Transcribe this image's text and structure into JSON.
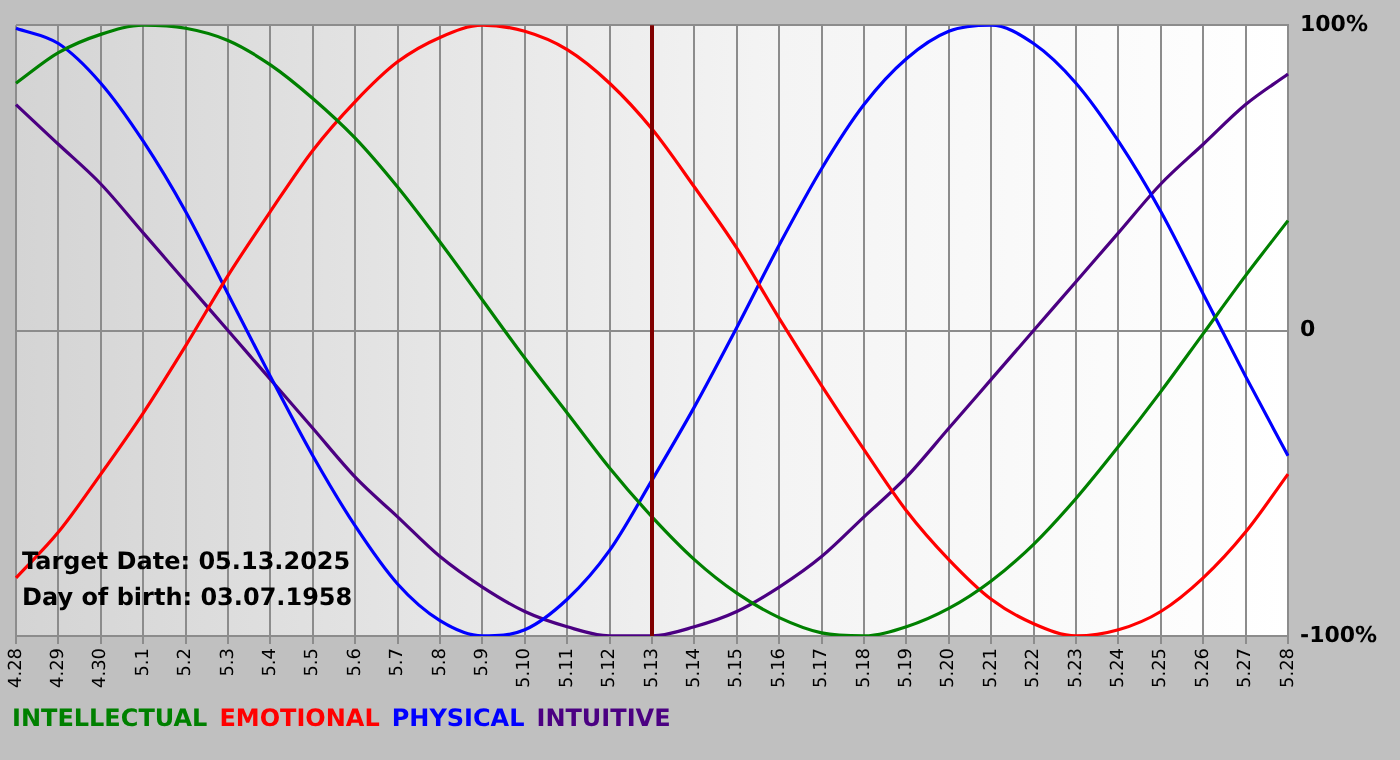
{
  "chart_data": {
    "type": "line",
    "categories": [
      "4.28",
      "4.29",
      "4.30",
      "5.1",
      "5.2",
      "5.3",
      "5.4",
      "5.5",
      "5.6",
      "5.7",
      "5.8",
      "5.9",
      "5.10",
      "5.11",
      "5.12",
      "5.13",
      "5.14",
      "5.15",
      "5.16",
      "5.17",
      "5.18",
      "5.19",
      "5.20",
      "5.21",
      "5.22",
      "5.23",
      "5.24",
      "5.25",
      "5.26",
      "5.27",
      "5.28"
    ],
    "series": [
      {
        "name": "INTELLECTUAL",
        "color": "#008000",
        "values": [
          81,
          91,
          97,
          100,
          99,
          95,
          87,
          76,
          63,
          47,
          29,
          10,
          -9,
          -27,
          -45,
          -61,
          -75,
          -86,
          -94,
          -99,
          -100,
          -97,
          -91,
          -82,
          -70,
          -55,
          -38,
          -20,
          -1,
          18,
          36
        ]
      },
      {
        "name": "EMOTIONAL",
        "color": "#ff0000",
        "values": [
          -81,
          -66,
          -47,
          -27,
          -5,
          18,
          39,
          59,
          75,
          88,
          96,
          100,
          98,
          92,
          81,
          66,
          47,
          27,
          4,
          -18,
          -39,
          -59,
          -75,
          -88,
          -96,
          -100,
          -98,
          -92,
          -81,
          -66,
          -47
        ]
      },
      {
        "name": "PHYSICAL",
        "color": "#0000ff",
        "values": [
          99,
          94,
          81,
          62,
          39,
          12,
          -15,
          -41,
          -64,
          -83,
          -95,
          -100,
          -98,
          -88,
          -72,
          -49,
          -25,
          1,
          28,
          53,
          74,
          89,
          98,
          100,
          94,
          81,
          62,
          39,
          12,
          -15,
          -41
        ]
      },
      {
        "name": "INTUITIVE",
        "color": "#4b0082",
        "values": [
          74,
          61,
          48,
          32,
          16,
          0,
          -16,
          -32,
          -48,
          -61,
          -74,
          -84,
          -92,
          -97,
          -100,
          -100,
          -97,
          -92,
          -84,
          -74,
          -61,
          -48,
          -32,
          -16,
          0,
          16,
          32,
          48,
          61,
          74,
          84
        ]
      }
    ],
    "ylim": [
      -100,
      100
    ],
    "yticks": [
      {
        "value": -100,
        "label": "-100%"
      },
      0,
      {
        "value": 100,
        "label": "100%"
      }
    ],
    "grid": true,
    "legend": "bottom left",
    "marker": "none",
    "line_style": "solid",
    "ref_lines": [
      {
        "axis": "x",
        "value": "5.13",
        "color": "#800000"
      }
    ],
    "annotations": [
      "Target Date: 05.13.2025",
      "Day of birth: 03.07.1958"
    ]
  }
}
